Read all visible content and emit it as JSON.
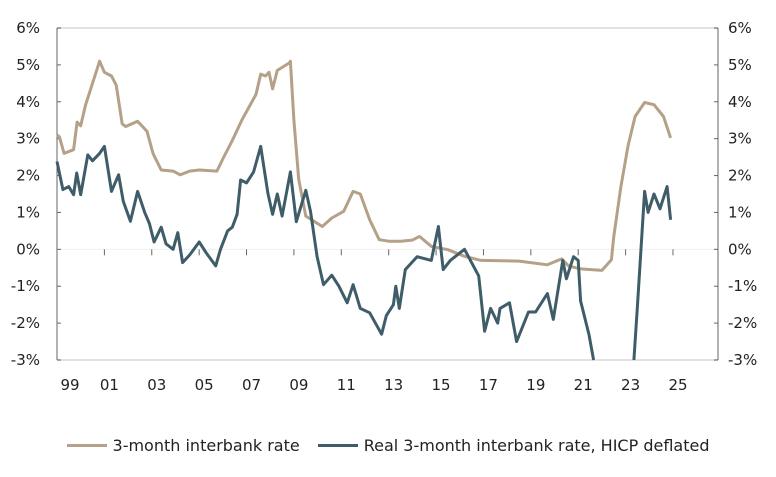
{
  "chart_data": {
    "type": "line",
    "title": "",
    "xlabel": "",
    "ylabel": "",
    "x_ticks": [
      "99",
      "01",
      "03",
      "05",
      "07",
      "09",
      "11",
      "13",
      "15",
      "17",
      "19",
      "21",
      "23",
      "25"
    ],
    "x_tick_years": [
      1999,
      2001,
      2003,
      2005,
      2007,
      2009,
      2011,
      2013,
      2015,
      2017,
      2019,
      2021,
      2023,
      2025
    ],
    "xlim": [
      1999,
      2026.9
    ],
    "ylim": [
      -3,
      6
    ],
    "y_ticks": [
      "-3%",
      "-2%",
      "-1%",
      "0%",
      "1%",
      "2%",
      "3%",
      "4%",
      "5%",
      "6%"
    ],
    "y_tick_values": [
      -3,
      -2,
      -1,
      0,
      1,
      2,
      3,
      4,
      5,
      6
    ],
    "right_axis_mirrors_left": true,
    "grid": false,
    "legend_position": "bottom",
    "series": [
      {
        "name": "3-month interbank rate",
        "color": "#b5a088",
        "points": [
          [
            1999.0,
            3.1
          ],
          [
            1999.1,
            3.05
          ],
          [
            1999.3,
            2.6
          ],
          [
            1999.7,
            2.7
          ],
          [
            1999.85,
            3.45
          ],
          [
            2000.0,
            3.35
          ],
          [
            2000.2,
            3.9
          ],
          [
            2000.5,
            4.5
          ],
          [
            2000.8,
            5.1
          ],
          [
            2001.0,
            4.8
          ],
          [
            2001.3,
            4.7
          ],
          [
            2001.5,
            4.45
          ],
          [
            2001.75,
            3.4
          ],
          [
            2001.9,
            3.33
          ],
          [
            2002.4,
            3.47
          ],
          [
            2002.8,
            3.2
          ],
          [
            2003.05,
            2.6
          ],
          [
            2003.4,
            2.15
          ],
          [
            2003.9,
            2.12
          ],
          [
            2004.2,
            2.02
          ],
          [
            2004.6,
            2.12
          ],
          [
            2005.0,
            2.15
          ],
          [
            2005.75,
            2.12
          ],
          [
            2006.0,
            2.45
          ],
          [
            2006.4,
            2.95
          ],
          [
            2006.8,
            3.5
          ],
          [
            2007.4,
            4.2
          ],
          [
            2007.6,
            4.75
          ],
          [
            2007.8,
            4.7
          ],
          [
            2007.95,
            4.8
          ],
          [
            2008.1,
            4.35
          ],
          [
            2008.3,
            4.85
          ],
          [
            2008.8,
            5.05
          ],
          [
            2008.85,
            5.1
          ],
          [
            2009.0,
            3.5
          ],
          [
            2009.2,
            1.9
          ],
          [
            2009.5,
            0.9
          ],
          [
            2010.2,
            0.62
          ],
          [
            2010.6,
            0.85
          ],
          [
            2011.1,
            1.03
          ],
          [
            2011.5,
            1.57
          ],
          [
            2011.8,
            1.5
          ],
          [
            2012.2,
            0.8
          ],
          [
            2012.6,
            0.26
          ],
          [
            2013.0,
            0.22
          ],
          [
            2013.5,
            0.22
          ],
          [
            2014.0,
            0.25
          ],
          [
            2014.3,
            0.35
          ],
          [
            2014.8,
            0.08
          ],
          [
            2015.5,
            -0.01
          ],
          [
            2016.2,
            -0.19
          ],
          [
            2016.9,
            -0.3
          ],
          [
            2018.5,
            -0.32
          ],
          [
            2019.7,
            -0.42
          ],
          [
            2020.3,
            -0.26
          ],
          [
            2020.6,
            -0.45
          ],
          [
            2021.1,
            -0.53
          ],
          [
            2022.0,
            -0.57
          ],
          [
            2022.4,
            -0.28
          ],
          [
            2022.5,
            0.35
          ],
          [
            2022.8,
            1.7
          ],
          [
            2023.1,
            2.8
          ],
          [
            2023.4,
            3.6
          ],
          [
            2023.8,
            3.98
          ],
          [
            2024.2,
            3.92
          ],
          [
            2024.6,
            3.6
          ],
          [
            2024.9,
            3.02
          ]
        ]
      },
      {
        "name": "Real 3-month interbank rate, HICP deflated",
        "color": "#3f5d69",
        "points": [
          [
            1999.0,
            2.38
          ],
          [
            1999.25,
            1.62
          ],
          [
            1999.5,
            1.7
          ],
          [
            1999.7,
            1.48
          ],
          [
            1999.83,
            2.07
          ],
          [
            2000.0,
            1.48
          ],
          [
            2000.3,
            2.56
          ],
          [
            2000.5,
            2.4
          ],
          [
            2000.8,
            2.6
          ],
          [
            2001.0,
            2.79
          ],
          [
            2001.3,
            1.57
          ],
          [
            2001.6,
            2.02
          ],
          [
            2001.8,
            1.3
          ],
          [
            2002.1,
            0.76
          ],
          [
            2002.4,
            1.57
          ],
          [
            2002.7,
            1.0
          ],
          [
            2002.9,
            0.7
          ],
          [
            2003.1,
            0.2
          ],
          [
            2003.4,
            0.6
          ],
          [
            2003.6,
            0.15
          ],
          [
            2003.9,
            0.0
          ],
          [
            2004.1,
            0.45
          ],
          [
            2004.3,
            -0.36
          ],
          [
            2004.6,
            -0.15
          ],
          [
            2005.0,
            0.2
          ],
          [
            2005.3,
            -0.1
          ],
          [
            2005.7,
            -0.45
          ],
          [
            2005.9,
            0.0
          ],
          [
            2006.2,
            0.5
          ],
          [
            2006.4,
            0.6
          ],
          [
            2006.6,
            0.95
          ],
          [
            2006.75,
            1.88
          ],
          [
            2007.0,
            1.8
          ],
          [
            2007.3,
            2.1
          ],
          [
            2007.6,
            2.79
          ],
          [
            2007.9,
            1.52
          ],
          [
            2008.1,
            0.95
          ],
          [
            2008.3,
            1.5
          ],
          [
            2008.5,
            0.9
          ],
          [
            2008.85,
            2.1
          ],
          [
            2009.1,
            0.75
          ],
          [
            2009.5,
            1.6
          ],
          [
            2009.7,
            1.03
          ],
          [
            2009.98,
            -0.2
          ],
          [
            2010.25,
            -0.96
          ],
          [
            2010.6,
            -0.7
          ],
          [
            2010.9,
            -1.0
          ],
          [
            2011.25,
            -1.45
          ],
          [
            2011.5,
            -0.96
          ],
          [
            2011.8,
            -1.6
          ],
          [
            2012.2,
            -1.72
          ],
          [
            2012.7,
            -2.3
          ],
          [
            2012.9,
            -1.8
          ],
          [
            2013.2,
            -1.5
          ],
          [
            2013.3,
            -1.0
          ],
          [
            2013.45,
            -1.6
          ],
          [
            2013.7,
            -0.55
          ],
          [
            2014.2,
            -0.2
          ],
          [
            2014.8,
            -0.3
          ],
          [
            2015.1,
            0.62
          ],
          [
            2015.3,
            -0.55
          ],
          [
            2015.6,
            -0.3
          ],
          [
            2016.2,
            0.0
          ],
          [
            2016.8,
            -0.72
          ],
          [
            2017.05,
            -2.22
          ],
          [
            2017.3,
            -1.6
          ],
          [
            2017.6,
            -2.0
          ],
          [
            2017.7,
            -1.6
          ],
          [
            2018.1,
            -1.45
          ],
          [
            2018.4,
            -2.5
          ],
          [
            2018.9,
            -1.7
          ],
          [
            2019.2,
            -1.7
          ],
          [
            2019.7,
            -1.2
          ],
          [
            2019.95,
            -1.9
          ],
          [
            2020.35,
            -0.3
          ],
          [
            2020.5,
            -0.8
          ],
          [
            2020.8,
            -0.2
          ],
          [
            2021.0,
            -0.3
          ],
          [
            2021.1,
            -1.4
          ],
          [
            2021.45,
            -2.3
          ],
          [
            2021.65,
            -3.0
          ],
          null,
          [
            2023.35,
            -3.0
          ],
          [
            2023.5,
            -1.55
          ],
          [
            2023.8,
            1.57
          ],
          [
            2023.95,
            1.0
          ],
          [
            2024.2,
            1.5
          ],
          [
            2024.45,
            1.1
          ],
          [
            2024.75,
            1.7
          ],
          [
            2024.9,
            0.8
          ]
        ]
      }
    ]
  }
}
